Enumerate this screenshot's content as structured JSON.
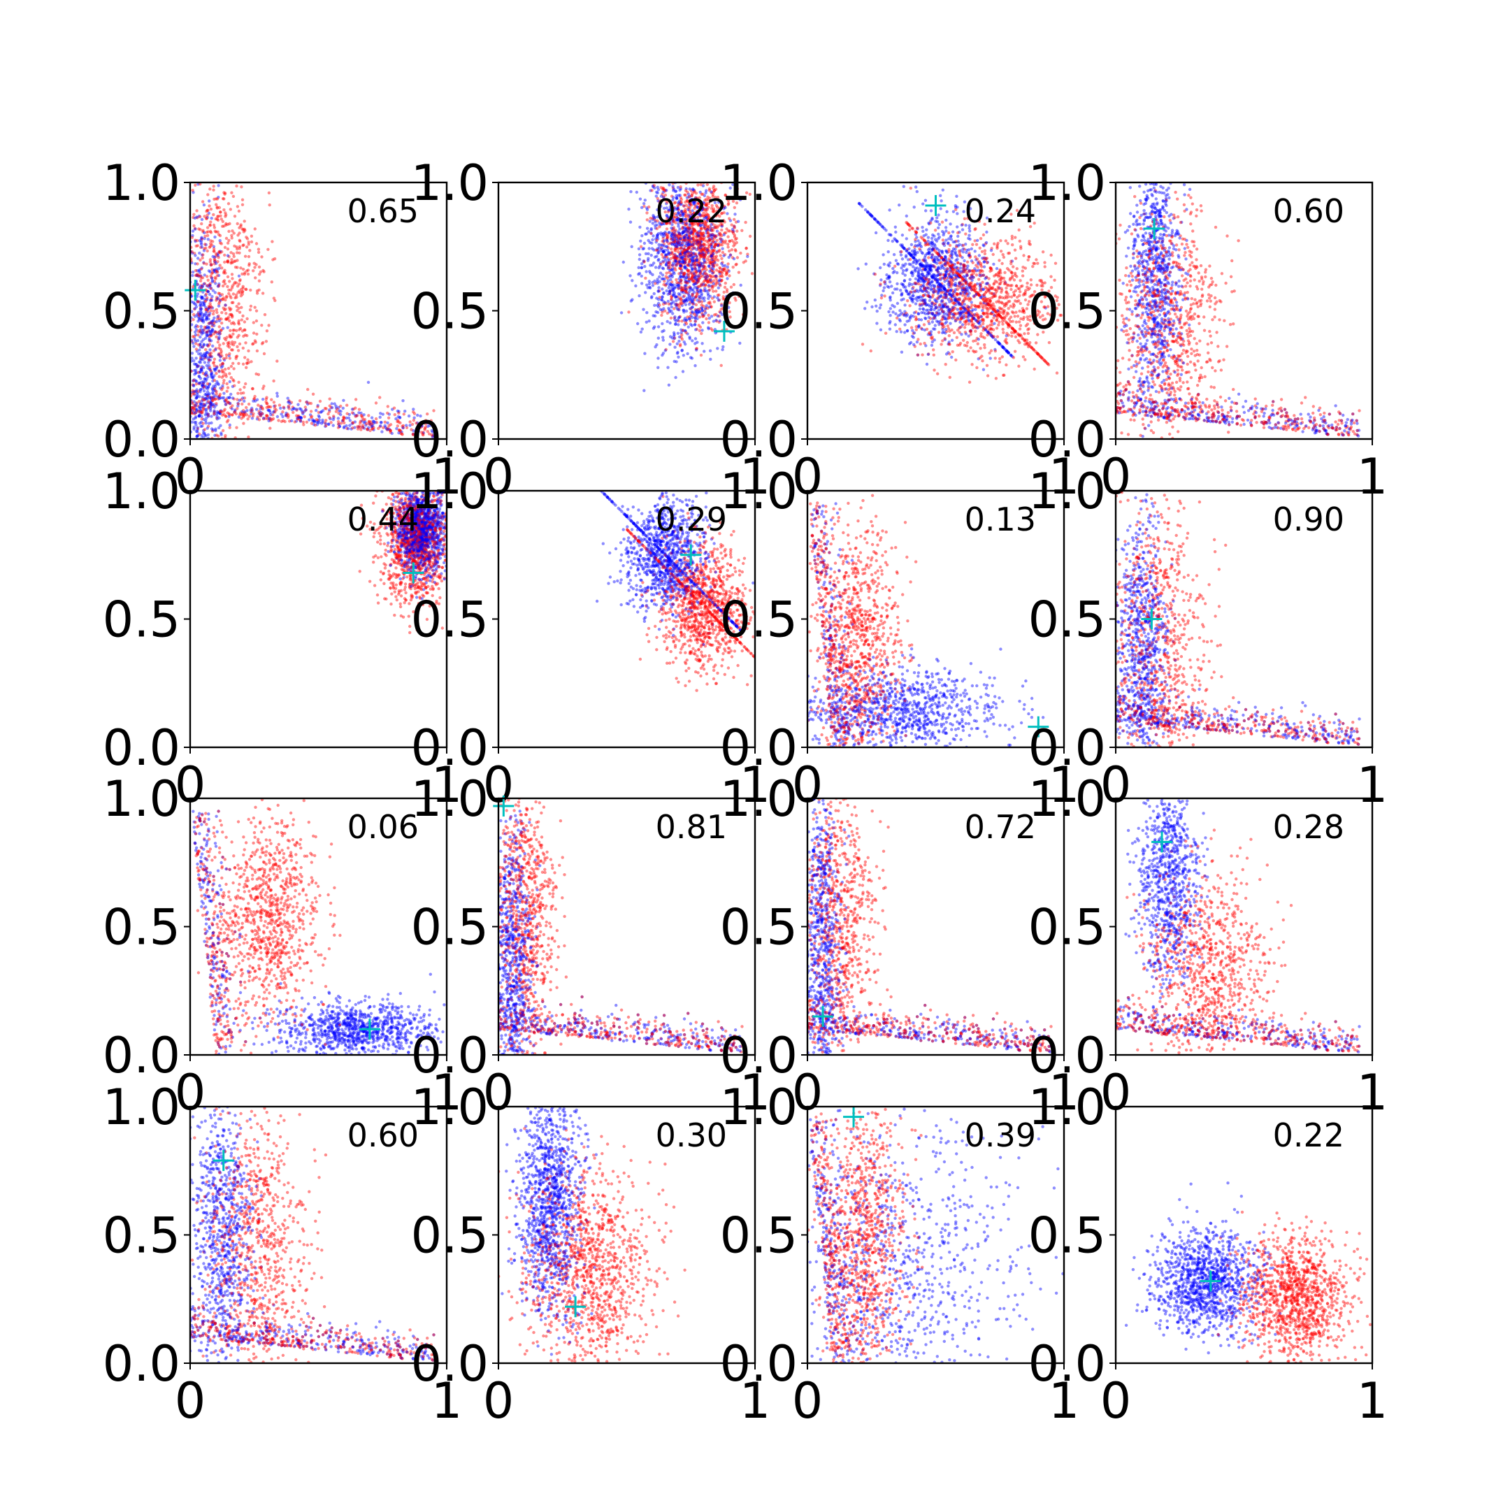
{
  "chart_data": {
    "type": "scatter",
    "layout": "4x4 grid of scatter panels",
    "colors": {
      "series_a": "#0000ff",
      "series_b": "#ff0000",
      "marker": "#00bfbf"
    },
    "xlim": [
      0,
      1
    ],
    "ylim": [
      0,
      1
    ],
    "x_ticks": [
      "0",
      "1"
    ],
    "y_ticks": [
      "0.0",
      "0.5",
      "1.0"
    ],
    "panels": [
      {
        "label": "0.65",
        "marker": [
          0.02,
          0.58
        ],
        "series_a": {
          "center": [
            0.05,
            0.2
          ],
          "spread": [
            0.04,
            0.35
          ],
          "tail": "x"
        },
        "series_b": {
          "center": [
            0.12,
            0.55
          ],
          "spread": [
            0.08,
            0.3
          ],
          "tail": "x"
        }
      },
      {
        "label": "0.22",
        "marker": [
          0.88,
          0.42
        ],
        "series_a": {
          "center": [
            0.72,
            0.7
          ],
          "spread": [
            0.08,
            0.18
          ],
          "tail": "none"
        },
        "series_b": {
          "center": [
            0.78,
            0.75
          ],
          "spread": [
            0.08,
            0.15
          ],
          "tail": "none"
        }
      },
      {
        "label": "0.24",
        "marker": [
          0.5,
          0.91
        ],
        "series_a": {
          "center": [
            0.5,
            0.62
          ],
          "spread": [
            0.1,
            0.12
          ],
          "tail": "diag"
        },
        "series_b": {
          "center": [
            0.68,
            0.55
          ],
          "spread": [
            0.14,
            0.12
          ],
          "tail": "diag"
        }
      },
      {
        "label": "0.60",
        "marker": [
          0.15,
          0.82
        ],
        "series_a": {
          "center": [
            0.15,
            0.65
          ],
          "spread": [
            0.05,
            0.25
          ],
          "tail": "x"
        },
        "series_b": {
          "center": [
            0.2,
            0.45
          ],
          "spread": [
            0.1,
            0.25
          ],
          "tail": "x"
        }
      },
      {
        "label": "0.44",
        "marker": [
          0.87,
          0.68
        ],
        "series_a": {
          "center": [
            0.9,
            0.85
          ],
          "spread": [
            0.05,
            0.08
          ],
          "tail": "none"
        },
        "series_b": {
          "center": [
            0.88,
            0.8
          ],
          "spread": [
            0.07,
            0.12
          ],
          "tail": "none"
        }
      },
      {
        "label": "0.29",
        "marker": [
          0.75,
          0.75
        ],
        "series_a": {
          "center": [
            0.65,
            0.75
          ],
          "spread": [
            0.08,
            0.12
          ],
          "tail": "diag"
        },
        "series_b": {
          "center": [
            0.8,
            0.55
          ],
          "spread": [
            0.08,
            0.12
          ],
          "tail": "diag"
        }
      },
      {
        "label": "0.13",
        "marker": [
          0.9,
          0.08
        ],
        "series_a": {
          "center": [
            0.35,
            0.15
          ],
          "spread": [
            0.2,
            0.08
          ],
          "tail": "y"
        },
        "series_b": {
          "center": [
            0.2,
            0.4
          ],
          "spread": [
            0.08,
            0.25
          ],
          "tail": "y"
        }
      },
      {
        "label": "0.90",
        "marker": [
          0.14,
          0.5
        ],
        "series_a": {
          "center": [
            0.1,
            0.35
          ],
          "spread": [
            0.05,
            0.3
          ],
          "tail": "x"
        },
        "series_b": {
          "center": [
            0.15,
            0.4
          ],
          "spread": [
            0.1,
            0.3
          ],
          "tail": "x"
        }
      },
      {
        "label": "0.06",
        "marker": [
          0.7,
          0.1
        ],
        "series_a": {
          "center": [
            0.65,
            0.1
          ],
          "spread": [
            0.15,
            0.05
          ],
          "tail": "y"
        },
        "series_b": {
          "center": [
            0.3,
            0.55
          ],
          "spread": [
            0.1,
            0.2
          ],
          "tail": "y"
        }
      },
      {
        "label": "0.81",
        "marker": [
          0.02,
          0.97
        ],
        "series_a": {
          "center": [
            0.05,
            0.35
          ],
          "spread": [
            0.04,
            0.3
          ],
          "tail": "x"
        },
        "series_b": {
          "center": [
            0.1,
            0.55
          ],
          "spread": [
            0.06,
            0.3
          ],
          "tail": "x"
        }
      },
      {
        "label": "0.72",
        "marker": [
          0.06,
          0.15
        ],
        "series_a": {
          "center": [
            0.05,
            0.4
          ],
          "spread": [
            0.04,
            0.35
          ],
          "tail": "x"
        },
        "series_b": {
          "center": [
            0.12,
            0.5
          ],
          "spread": [
            0.07,
            0.3
          ],
          "tail": "x"
        }
      },
      {
        "label": "0.28",
        "marker": [
          0.18,
          0.83
        ],
        "series_a": {
          "center": [
            0.2,
            0.7
          ],
          "spread": [
            0.06,
            0.2
          ],
          "tail": "x"
        },
        "series_b": {
          "center": [
            0.35,
            0.35
          ],
          "spread": [
            0.12,
            0.18
          ],
          "tail": "x"
        }
      },
      {
        "label": "0.60",
        "marker": [
          0.13,
          0.79
        ],
        "series_a": {
          "center": [
            0.12,
            0.5
          ],
          "spread": [
            0.06,
            0.3
          ],
          "tail": "x"
        },
        "series_b": {
          "center": [
            0.25,
            0.45
          ],
          "spread": [
            0.1,
            0.28
          ],
          "tail": "x"
        }
      },
      {
        "label": "0.30",
        "marker": [
          0.3,
          0.22
        ],
        "series_a": {
          "center": [
            0.2,
            0.65
          ],
          "spread": [
            0.06,
            0.22
          ],
          "tail": "none"
        },
        "series_b": {
          "center": [
            0.35,
            0.35
          ],
          "spread": [
            0.12,
            0.2
          ],
          "tail": "none"
        }
      },
      {
        "label": "0.39",
        "marker": [
          0.18,
          0.96
        ],
        "series_a": {
          "center": [
            0.35,
            0.35
          ],
          "spread": [
            0.25,
            0.3
          ],
          "tail": "y"
        },
        "series_b": {
          "center": [
            0.22,
            0.5
          ],
          "spread": [
            0.08,
            0.3
          ],
          "tail": "y"
        }
      },
      {
        "label": "0.22",
        "marker": [
          0.37,
          0.32
        ],
        "series_a": {
          "center": [
            0.35,
            0.32
          ],
          "spread": [
            0.1,
            0.1
          ],
          "tail": "none"
        },
        "series_b": {
          "center": [
            0.7,
            0.25
          ],
          "spread": [
            0.1,
            0.12
          ],
          "tail": "none"
        }
      }
    ]
  }
}
